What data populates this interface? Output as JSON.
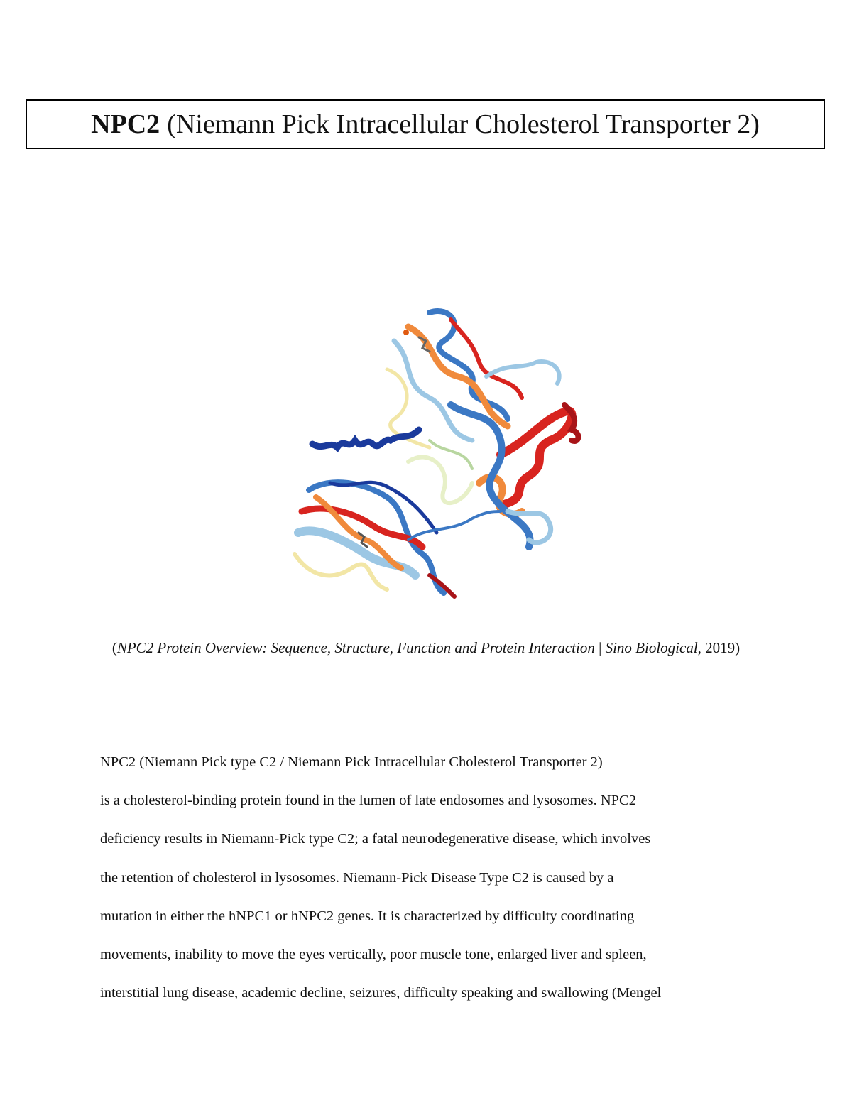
{
  "title": {
    "bold": "NPC2",
    "rest": "(Niemann Pick Intracellular Cholesterol Transporter 2)"
  },
  "figure": {
    "description_icon": "protein-structure-ribbon",
    "colors": [
      "#1a3a9c",
      "#3b78c4",
      "#9cc7e4",
      "#f2e6a6",
      "#f08a3c",
      "#d8241f",
      "#a81418"
    ]
  },
  "caption": {
    "open": "(",
    "source_title": "NPC2 Protein Overview: Sequence, Structure, Function and Protein Interaction",
    "separator": " | ",
    "publisher": "Sino Biological",
    "close": ", 2019)"
  },
  "body": {
    "lines": [
      "NPC2 (Niemann Pick type C2 / Niemann Pick Intracellular Cholesterol Transporter 2)",
      "is a cholesterol-binding protein found in the lumen of late endosomes and lysosomes. NPC2",
      "deficiency results in Niemann-Pick type C2; a fatal neurodegenerative disease, which involves",
      "the retention of cholesterol in lysosomes. Niemann-Pick Disease Type C2 is caused by a",
      "mutation in either the hNPC1 or hNPC2 genes. It is characterized by difficulty coordinating",
      "movements, inability to move the eyes vertically, poor muscle tone, enlarged liver and spleen,",
      "interstitial lung disease, academic decline, seizures, difficulty speaking and swallowing (Mengel"
    ]
  }
}
